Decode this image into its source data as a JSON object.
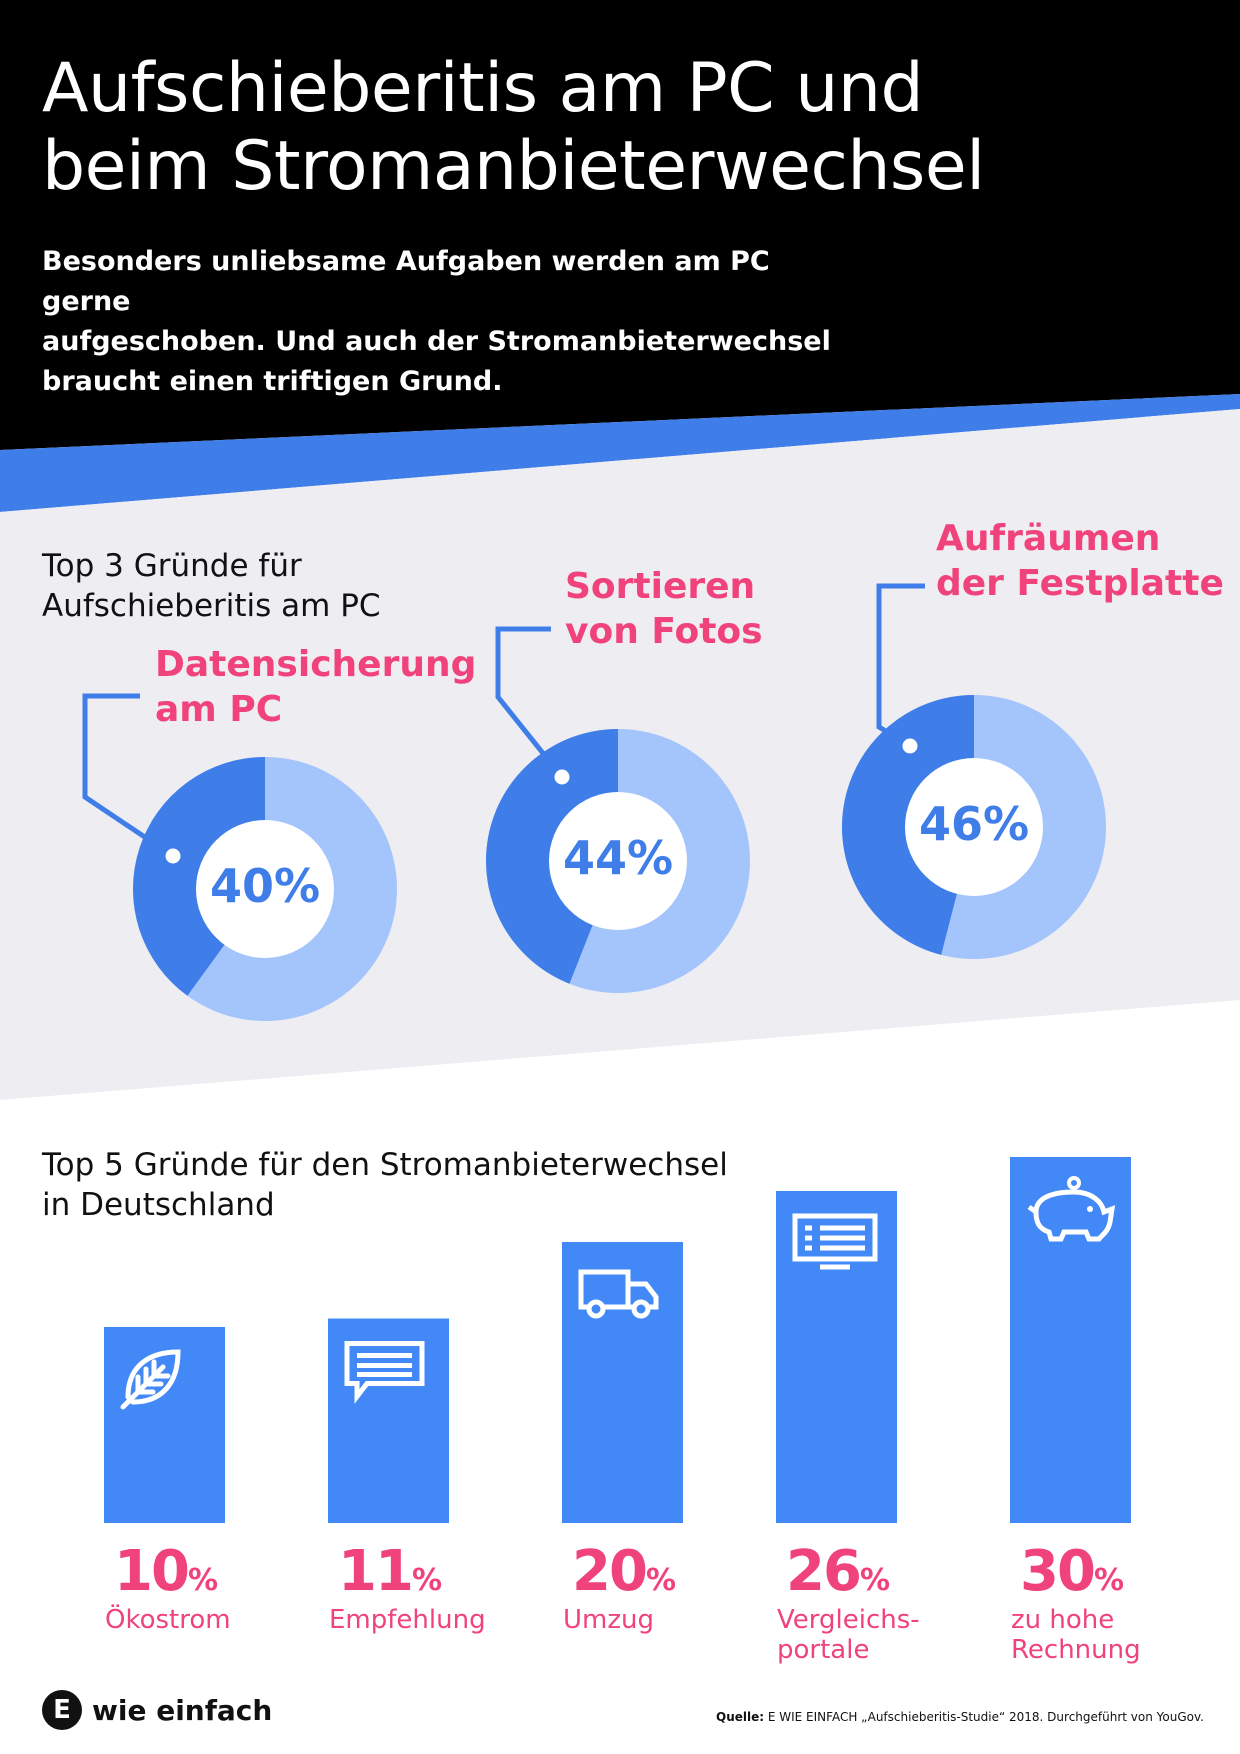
{
  "header": {
    "title_line1": "Aufschieberitis am PC und",
    "title_line2": "beim Stromanbieterwechsel",
    "subtitle_lines": [
      "Besonders unliebsame Aufgaben werden am PC gerne",
      "aufgeschoben. Und auch der Stromanbieterwechsel",
      "braucht einen triftigen Grund."
    ]
  },
  "colors": {
    "dark_blue": "#3f7ee8",
    "light_blue": "#a4c4fc",
    "bar_blue": "#4288f7",
    "pink": "#f0437b",
    "gray_bg": "#eeedf2"
  },
  "chart_data": [
    {
      "type": "pie",
      "title": "Top 3 Gründe für Aufschieberitis am PC",
      "title_lines": [
        "Top 3 Gründe für",
        "Aufschieberitis am PC"
      ],
      "items": [
        {
          "label_lines": [
            "Datensicherung",
            "am PC"
          ],
          "value": 40,
          "display": "40%"
        },
        {
          "label_lines": [
            "Sortieren",
            "von Fotos"
          ],
          "value": 44,
          "display": "44%"
        },
        {
          "label_lines": [
            "Aufräumen",
            "der Festplatte"
          ],
          "value": 46,
          "display": "46%"
        }
      ]
    },
    {
      "type": "bar",
      "title": "Top 5 Gründe für den Stromanbieterwechsel in Deutschland",
      "title_lines": [
        "Top 5 Gründe für den Stromanbieterwechsel",
        "in Deutschland"
      ],
      "unit": "%",
      "items": [
        {
          "value": 10,
          "display": "10",
          "label_lines": [
            "Ökostrom"
          ],
          "icon": "leaf-icon"
        },
        {
          "value": 11,
          "display": "11",
          "label_lines": [
            "Empfehlung"
          ],
          "icon": "speech-bubble-icon"
        },
        {
          "value": 20,
          "display": "20",
          "label_lines": [
            "Umzug"
          ],
          "icon": "truck-icon"
        },
        {
          "value": 26,
          "display": "26",
          "label_lines": [
            "Vergleichs-",
            "portale"
          ],
          "icon": "monitor-icon"
        },
        {
          "value": 30,
          "display": "30",
          "label_lines": [
            "zu hohe",
            "Rechnung"
          ],
          "icon": "piggy-bank-icon"
        }
      ]
    }
  ],
  "footer": {
    "logo_letter": "E",
    "logo_text": "wie einfach",
    "source_prefix": "Quelle:",
    "source_text": " E WIE EINFACH „Aufschieberitis-Studie“ 2018. Durchgeführt von YouGov."
  }
}
